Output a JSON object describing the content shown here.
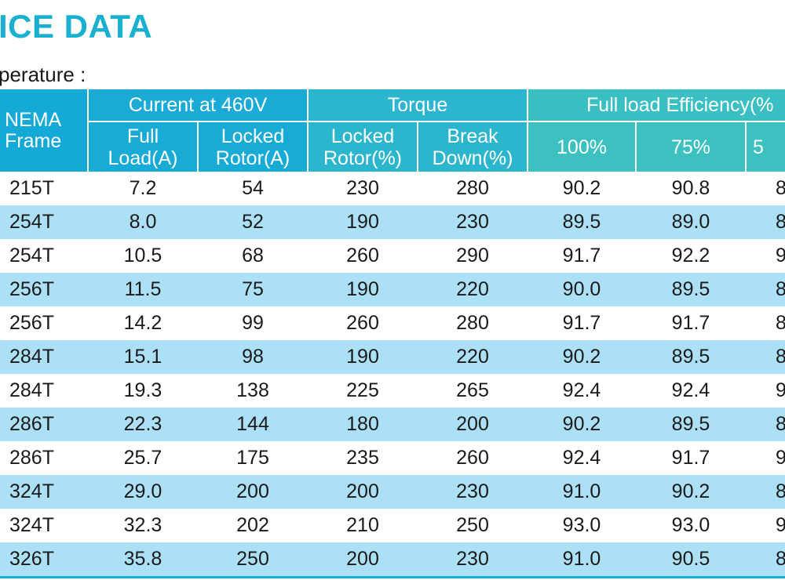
{
  "title": "ICE DATA",
  "subtitle": "perature :",
  "table": {
    "group_headers": {
      "frame": [
        "NEMA",
        "Frame"
      ],
      "current": "Current at 460V",
      "torque": "Torque",
      "efficiency": "Full load Efficiency(%"
    },
    "sub_headers": {
      "full_load": [
        "Full",
        "Load(A)"
      ],
      "locked_rotor_a": [
        "Locked",
        "Rotor(A)"
      ],
      "locked_rotor_pct": [
        "Locked",
        "Rotor(%)"
      ],
      "break_down": [
        "Break",
        "Down(%)"
      ],
      "eff100": "100%",
      "eff75": "75%",
      "eff50": "5"
    },
    "rows": [
      [
        "215T",
        "7.2",
        "54",
        "230",
        "280",
        "90.2",
        "90.8",
        "8"
      ],
      [
        "254T",
        "8.0",
        "52",
        "190",
        "230",
        "89.5",
        "89.0",
        "8"
      ],
      [
        "254T",
        "10.5",
        "68",
        "260",
        "290",
        "91.7",
        "92.2",
        "9"
      ],
      [
        "256T",
        "11.5",
        "75",
        "190",
        "220",
        "90.0",
        "89.5",
        "8"
      ],
      [
        "256T",
        "14.2",
        "99",
        "260",
        "280",
        "91.7",
        "91.7",
        "8"
      ],
      [
        "284T",
        "15.1",
        "98",
        "190",
        "220",
        "90.2",
        "89.5",
        "8"
      ],
      [
        "284T",
        "19.3",
        "138",
        "225",
        "265",
        "92.4",
        "92.4",
        "9"
      ],
      [
        "286T",
        "22.3",
        "144",
        "180",
        "200",
        "90.2",
        "89.5",
        "8"
      ],
      [
        "286T",
        "25.7",
        "175",
        "235",
        "260",
        "92.4",
        "91.7",
        "9"
      ],
      [
        "324T",
        "29.0",
        "200",
        "200",
        "230",
        "91.0",
        "90.2",
        "8"
      ],
      [
        "324T",
        "32.3",
        "202",
        "210",
        "250",
        "93.0",
        "93.0",
        "9"
      ],
      [
        "326T",
        "35.8",
        "250",
        "200",
        "230",
        "91.0",
        "90.5",
        "8"
      ]
    ]
  }
}
